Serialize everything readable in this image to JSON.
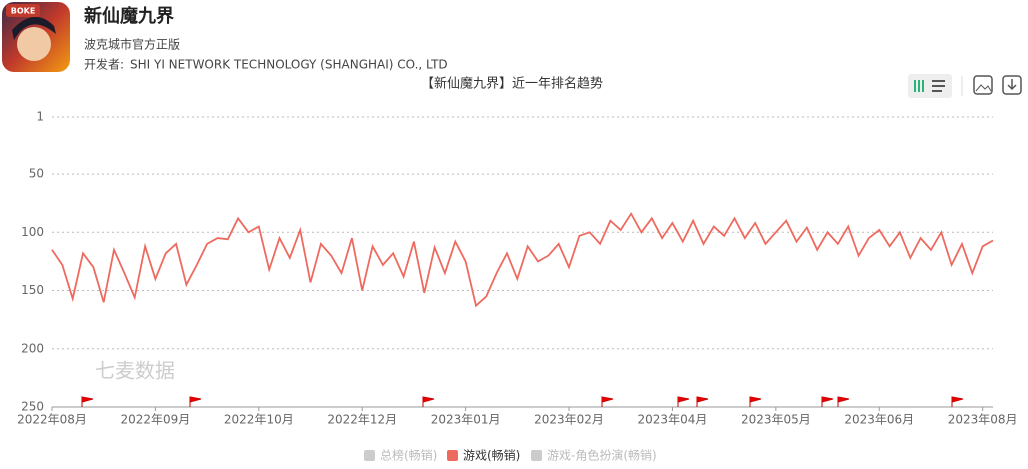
{
  "app": {
    "icon_text": "BOKE",
    "name": "新仙魔九界",
    "subtitle": "波克城市官方正版",
    "developer_label": "开发者:",
    "developer": "SHI YI NETWORK TECHNOLOGY (SHANGHAI) CO., LTD"
  },
  "chart_data": {
    "type": "line",
    "title": "【新仙魔九界】近一年排名趋势",
    "watermark": "七麦数据",
    "x": [
      0,
      4,
      8,
      12,
      16,
      20,
      24,
      28,
      32,
      36,
      40,
      44,
      48,
      52,
      56,
      60,
      64,
      68,
      72,
      76,
      80,
      84,
      88,
      92,
      96,
      100,
      104,
      108,
      112,
      116,
      120,
      124,
      128,
      132,
      136,
      140,
      144,
      148,
      152,
      156,
      160,
      164,
      168,
      172,
      176,
      180,
      184,
      188,
      192,
      196,
      200,
      204,
      208,
      212,
      216,
      220,
      224,
      228,
      232,
      236,
      240,
      244,
      248,
      252,
      256,
      260,
      264,
      268,
      272,
      276,
      280,
      284,
      288,
      292,
      296,
      300,
      304,
      308,
      312,
      316,
      320,
      324,
      328,
      332,
      336,
      340,
      344,
      348,
      352,
      356,
      360,
      364
    ],
    "series": [
      {
        "name": "游戏(畅销)",
        "color": "#ee6a5f",
        "values": [
          115,
          128,
          157,
          118,
          130,
          160,
          115,
          135,
          156,
          112,
          140,
          118,
          110,
          145,
          128,
          110,
          105,
          106,
          88,
          100,
          95,
          132,
          105,
          122,
          98,
          143,
          110,
          120,
          135,
          105,
          150,
          112,
          128,
          118,
          138,
          108,
          152,
          113,
          135,
          108,
          125,
          163,
          155,
          135,
          118,
          140,
          112,
          125,
          120,
          110,
          130,
          103,
          100,
          110,
          90,
          98,
          84,
          100,
          88,
          105,
          92,
          108,
          90,
          110,
          95,
          103,
          88,
          105,
          92,
          110,
          100,
          90,
          108,
          96,
          115,
          100,
          110,
          95,
          120,
          105,
          98,
          112,
          100,
          122,
          105,
          115,
          100,
          128,
          110,
          135,
          112,
          107
        ]
      }
    ],
    "hidden_series": [
      {
        "name": "总榜(畅销)",
        "color": "#cccccc"
      },
      {
        "name": "游戏-角色扮演(畅销)",
        "color": "#cccccc"
      }
    ],
    "xlim": [
      0,
      364
    ],
    "xticks": [
      {
        "value": 0,
        "label": "2022年08月"
      },
      {
        "value": 40,
        "label": "2022年09月"
      },
      {
        "value": 80,
        "label": "2022年10月"
      },
      {
        "value": 120,
        "label": "2022年12月"
      },
      {
        "value": 160,
        "label": "2023年01月"
      },
      {
        "value": 200,
        "label": "2023年02月"
      },
      {
        "value": 240,
        "label": "2023年04月"
      },
      {
        "value": 280,
        "label": "2023年05月"
      },
      {
        "value": 320,
        "label": "2023年06月"
      },
      {
        "value": 360,
        "label": "2023年08月"
      }
    ],
    "ylim": [
      250,
      1
    ],
    "yticks": [
      1,
      50,
      100,
      150,
      200,
      250
    ],
    "grid": true
  }
}
